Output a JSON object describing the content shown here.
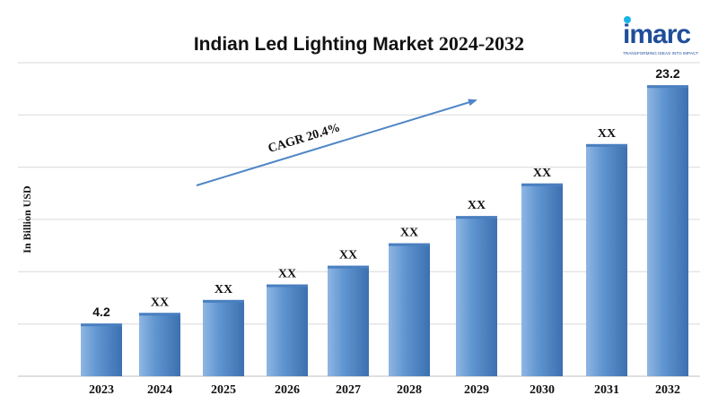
{
  "header": {
    "title_text": "Indian Led Lighting Market",
    "title_years": "2024-2032"
  },
  "logo": {
    "word": "imarc",
    "tagline": "TRANSFORMING IDEAS INTO IMPACT",
    "dot_color": "#19b4e6"
  },
  "colors": {
    "bar_light": "#8fb6e3",
    "bar_mid": "#5f95d0",
    "bar_dark": "#3c70b0",
    "bar_top": "#4a7fc0",
    "arrow": "#4f86c6",
    "grid": "#d9d9d9",
    "axis": "#bfbfbf"
  },
  "chart_data": {
    "type": "bar",
    "title": "Indian Led Lighting Market 2024-2032",
    "ylabel": "In Billion USD",
    "xlabel": "",
    "categories": [
      "2023",
      "2024",
      "2025",
      "2026",
      "2027",
      "2028",
      "2029",
      "2030",
      "2031",
      "2032"
    ],
    "values": [
      4.2,
      5.05,
      6.08,
      7.32,
      8.81,
      10.6,
      12.77,
      15.37,
      18.51,
      23.2
    ],
    "data_labels": [
      "4.2",
      "XX",
      "XX",
      "XX",
      "XX",
      "XX",
      "XX",
      "XX",
      "XX",
      "23.2"
    ],
    "ylim": [
      0,
      25
    ],
    "grid": true,
    "annotation": {
      "text": "CAGR 20.4%",
      "from_category": "2024",
      "to_category": "2030"
    }
  }
}
